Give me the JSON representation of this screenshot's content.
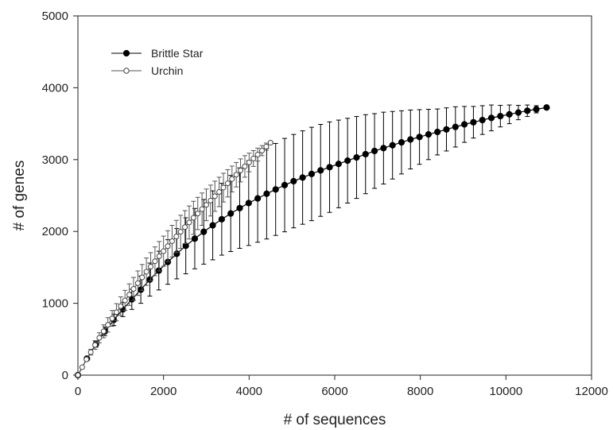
{
  "chart_data": {
    "type": "line",
    "xlabel": "# of sequences",
    "ylabel": "# of genes",
    "xlim": [
      0,
      12000
    ],
    "ylim": [
      0,
      5000
    ],
    "x_ticks": [
      0,
      2000,
      4000,
      6000,
      8000,
      10000,
      12000
    ],
    "y_ticks": [
      0,
      1000,
      2000,
      3000,
      4000,
      5000
    ],
    "grid": false,
    "legend_position": "top-left",
    "series": [
      {
        "name": "Brittle Star",
        "marker": "filled-circle",
        "x": [
          0,
          210,
          420,
          630,
          840,
          1050,
          1260,
          1470,
          1680,
          1890,
          2100,
          2310,
          2520,
          2730,
          2940,
          3150,
          3360,
          3570,
          3780,
          3990,
          4200,
          4410,
          4620,
          4830,
          5040,
          5250,
          5460,
          5670,
          5880,
          6090,
          6300,
          6510,
          6720,
          6930,
          7140,
          7350,
          7560,
          7770,
          7980,
          8190,
          8400,
          8610,
          8820,
          9030,
          9240,
          9450,
          9660,
          9870,
          10080,
          10290,
          10500,
          10710,
          10950
        ],
        "y": [
          0,
          230,
          430,
          610,
          770,
          915,
          1055,
          1190,
          1330,
          1455,
          1575,
          1690,
          1800,
          1900,
          1995,
          2085,
          2170,
          2250,
          2325,
          2395,
          2460,
          2525,
          2585,
          2645,
          2700,
          2750,
          2800,
          2850,
          2895,
          2940,
          2985,
          3030,
          3075,
          3120,
          3160,
          3200,
          3240,
          3280,
          3315,
          3350,
          3385,
          3420,
          3455,
          3490,
          3520,
          3550,
          3580,
          3605,
          3630,
          3655,
          3680,
          3700,
          3725
        ],
        "error": [
          0,
          20,
          40,
          60,
          80,
          100,
          140,
          190,
          230,
          270,
          310,
          350,
          390,
          420,
          450,
          480,
          500,
          530,
          560,
          590,
          610,
          630,
          640,
          650,
          650,
          650,
          650,
          640,
          630,
          610,
          590,
          570,
          550,
          520,
          500,
          470,
          440,
          410,
          380,
          350,
          320,
          300,
          280,
          250,
          220,
          200,
          180,
          150,
          130,
          100,
          80,
          50,
          20
        ]
      },
      {
        "name": "Urchin",
        "marker": "open-circle",
        "x": [
          0,
          100,
          200,
          300,
          400,
          500,
          600,
          700,
          800,
          900,
          1000,
          1100,
          1200,
          1300,
          1400,
          1500,
          1600,
          1700,
          1800,
          1900,
          2000,
          2100,
          2200,
          2300,
          2400,
          2500,
          2600,
          2700,
          2800,
          2900,
          3000,
          3100,
          3200,
          3300,
          3400,
          3500,
          3600,
          3700,
          3800,
          3900,
          4000,
          4100,
          4200,
          4300,
          4400,
          4500
        ],
        "y": [
          0,
          110,
          220,
          320,
          420,
          520,
          610,
          700,
          790,
          875,
          960,
          1040,
          1120,
          1200,
          1280,
          1360,
          1440,
          1510,
          1585,
          1655,
          1725,
          1795,
          1865,
          1930,
          1995,
          2060,
          2125,
          2190,
          2250,
          2310,
          2370,
          2430,
          2490,
          2550,
          2610,
          2670,
          2730,
          2790,
          2850,
          2905,
          2960,
          3015,
          3070,
          3125,
          3180,
          3235
        ],
        "error": [
          0,
          10,
          20,
          40,
          60,
          70,
          90,
          100,
          110,
          120,
          130,
          140,
          150,
          160,
          170,
          180,
          190,
          195,
          200,
          205,
          210,
          215,
          220,
          225,
          230,
          230,
          230,
          230,
          225,
          225,
          220,
          215,
          210,
          205,
          200,
          190,
          180,
          170,
          160,
          150,
          130,
          110,
          90,
          70,
          50,
          20
        ]
      }
    ]
  }
}
